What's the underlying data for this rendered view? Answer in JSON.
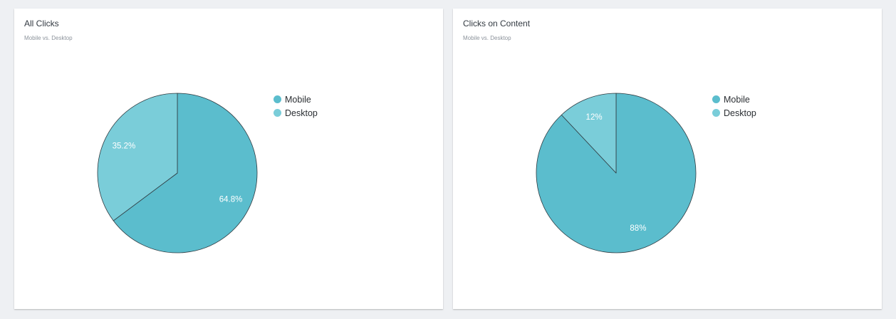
{
  "charts": [
    {
      "title": "All Clicks",
      "subtitle": "Mobile vs. Desktop",
      "legend": [
        {
          "label": "Mobile",
          "color": "#5bbdcd"
        },
        {
          "label": "Desktop",
          "color": "#7acdd9"
        }
      ]
    },
    {
      "title": "Clicks on Content",
      "subtitle": "Mobile vs. Desktop",
      "legend": [
        {
          "label": "Mobile",
          "color": "#5bbdcd"
        },
        {
          "label": "Desktop",
          "color": "#7acdd9"
        }
      ]
    }
  ],
  "chart_data": [
    {
      "type": "pie",
      "title": "All Clicks",
      "subtitle": "Mobile vs. Desktop",
      "legend_position": "right",
      "slices": [
        {
          "label": "Mobile",
          "value": 64.8,
          "display": "64.8%",
          "color": "#5bbdcd"
        },
        {
          "label": "Desktop",
          "value": 35.2,
          "display": "35.2%",
          "color": "#7acdd9"
        }
      ]
    },
    {
      "type": "pie",
      "title": "Clicks on Content",
      "subtitle": "Mobile vs. Desktop",
      "legend_position": "right",
      "slices": [
        {
          "label": "Mobile",
          "value": 88,
          "display": "88%",
          "color": "#5bbdcd"
        },
        {
          "label": "Desktop",
          "value": 12,
          "display": "12%",
          "color": "#7acdd9"
        }
      ]
    }
  ]
}
